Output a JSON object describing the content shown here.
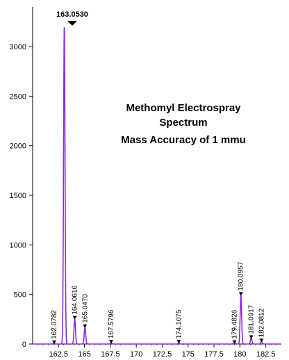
{
  "chart_data": {
    "type": "line",
    "title": "",
    "xlabel": "",
    "ylabel": "",
    "xlim": [
      160,
      184
    ],
    "ylim": [
      0,
      3400
    ],
    "x_ticks": [
      162.5,
      165,
      167.5,
      170,
      172.5,
      175,
      177.5,
      180,
      182.5
    ],
    "x_tick_labels": [
      "162.5",
      "165",
      "167.5",
      "170",
      "172.5",
      "175",
      "177.5",
      "180",
      "182.5"
    ],
    "y_ticks": [
      0,
      500,
      1000,
      1500,
      2000,
      2500,
      3000
    ],
    "y_tick_labels": [
      "0",
      "500",
      "1000",
      "1500",
      "2000",
      "2500",
      "3000"
    ],
    "grid": false,
    "line_color": "#8a2be2",
    "annotation_lines": [
      "Methomyl Electrospray",
      "Spectrum",
      "Mass Accuracy of 1 mmu"
    ],
    "top_peak_label": "163.0530",
    "peaks": [
      {
        "mz": 162.0782,
        "intensity": 8,
        "label": "162.0782"
      },
      {
        "mz": 163.053,
        "intensity": 3210,
        "label": "163.0530"
      },
      {
        "mz": 164.0616,
        "intensity": 255,
        "label": "164.0616"
      },
      {
        "mz": 165.047,
        "intensity": 170,
        "label": "165.0470"
      },
      {
        "mz": 167.5796,
        "intensity": 12,
        "label": "167.5796"
      },
      {
        "mz": 174.1075,
        "intensity": 12,
        "label": "174.1075"
      },
      {
        "mz": 179.4826,
        "intensity": 10,
        "label": "179.4826"
      },
      {
        "mz": 180.0957,
        "intensity": 495,
        "label": "180.0957"
      },
      {
        "mz": 181.0917,
        "intensity": 60,
        "label": "181.0917"
      },
      {
        "mz": 182.0812,
        "intensity": 25,
        "label": "182.0812"
      }
    ]
  }
}
